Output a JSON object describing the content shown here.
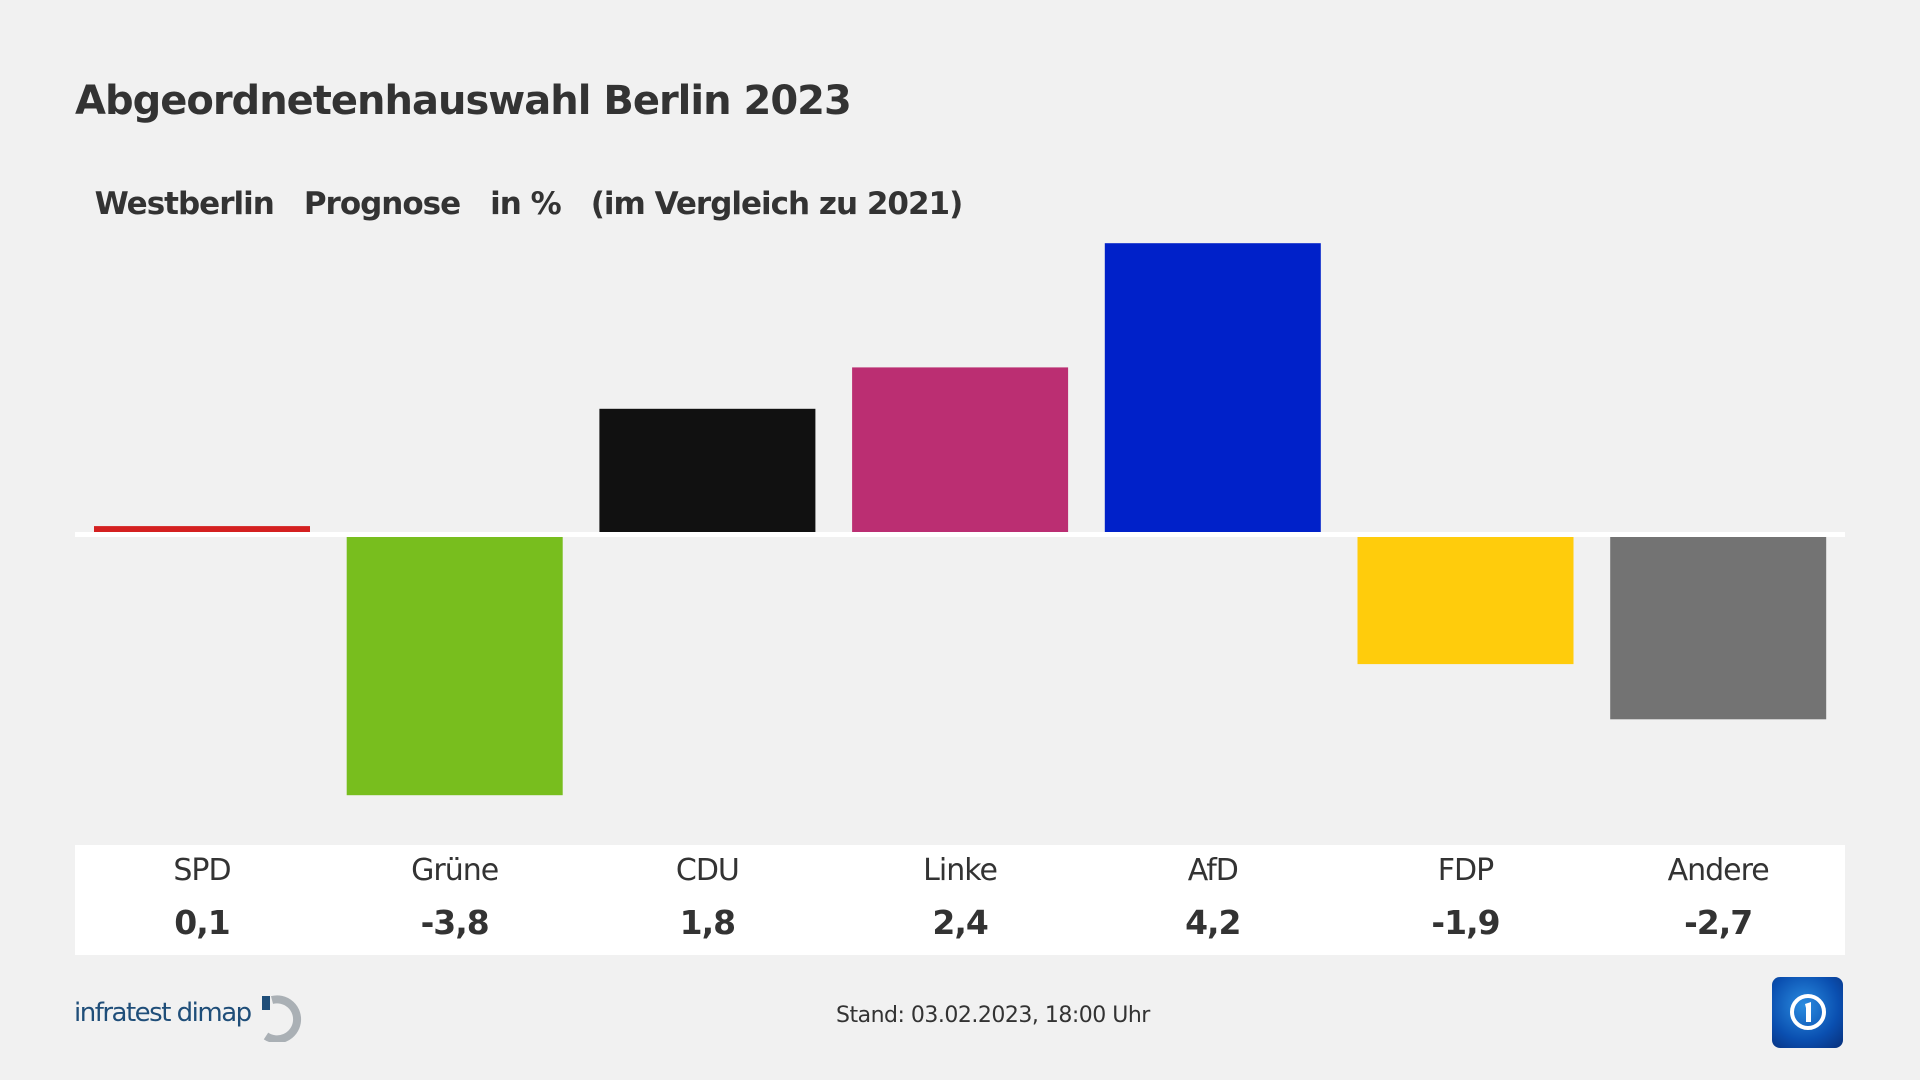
{
  "title": "Abgeordnetenhauswahl Berlin 2023",
  "subtitle": [
    "Westberlin",
    "Prognose",
    "in %",
    "(im Vergleich zu 2021)"
  ],
  "chart_data": {
    "type": "bar",
    "title": "Abgeordnetenhauswahl Berlin 2023",
    "categories": [
      "SPD",
      "Grüne",
      "CDU",
      "Linke",
      "AfD",
      "FDP",
      "Andere"
    ],
    "values": [
      0.1,
      -3.8,
      1.8,
      2.4,
      4.2,
      -1.9,
      -2.7
    ],
    "value_labels": [
      "0,1",
      "-3,8",
      "1,8",
      "2,4",
      "4,2",
      "-1,9",
      "-2,7"
    ],
    "colors": [
      "#d42020",
      "#78be1e",
      "#111111",
      "#bb2e72",
      "#0021c9",
      "#ffcc0c",
      "#737373"
    ],
    "ylim": [
      -3.8,
      4.2
    ],
    "grid": false,
    "zero_line_color": "#ffffff"
  },
  "footer": {
    "source": "infratest dimap",
    "stand": "Stand:  03.02.2023, 18:00 Uhr"
  },
  "logos": {
    "ard": "ard-das-erste-logo"
  }
}
